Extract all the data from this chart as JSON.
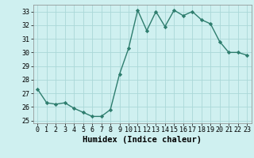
{
  "x": [
    0,
    1,
    2,
    3,
    4,
    5,
    6,
    7,
    8,
    9,
    10,
    11,
    12,
    13,
    14,
    15,
    16,
    17,
    18,
    19,
    20,
    21,
    22,
    23
  ],
  "y": [
    27.3,
    26.3,
    26.2,
    26.3,
    25.9,
    25.6,
    25.3,
    25.3,
    25.8,
    28.4,
    30.3,
    33.1,
    31.6,
    33.0,
    31.9,
    33.1,
    32.7,
    33.0,
    32.4,
    32.1,
    30.8,
    30.0,
    30.0,
    29.8
  ],
  "line_color": "#2e7d6e",
  "marker": "D",
  "marker_size": 2.2,
  "bg_color": "#cff0f0",
  "grid_color": "#aad8d8",
  "xlabel": "Humidex (Indice chaleur)",
  "ylim": [
    24.8,
    33.5
  ],
  "xlim": [
    -0.5,
    23.5
  ],
  "yticks": [
    25,
    26,
    27,
    28,
    29,
    30,
    31,
    32,
    33
  ],
  "xticks": [
    0,
    1,
    2,
    3,
    4,
    5,
    6,
    7,
    8,
    9,
    10,
    11,
    12,
    13,
    14,
    15,
    16,
    17,
    18,
    19,
    20,
    21,
    22,
    23
  ],
  "tick_fontsize": 6.0,
  "xlabel_fontsize": 7.5,
  "line_width": 1.0
}
